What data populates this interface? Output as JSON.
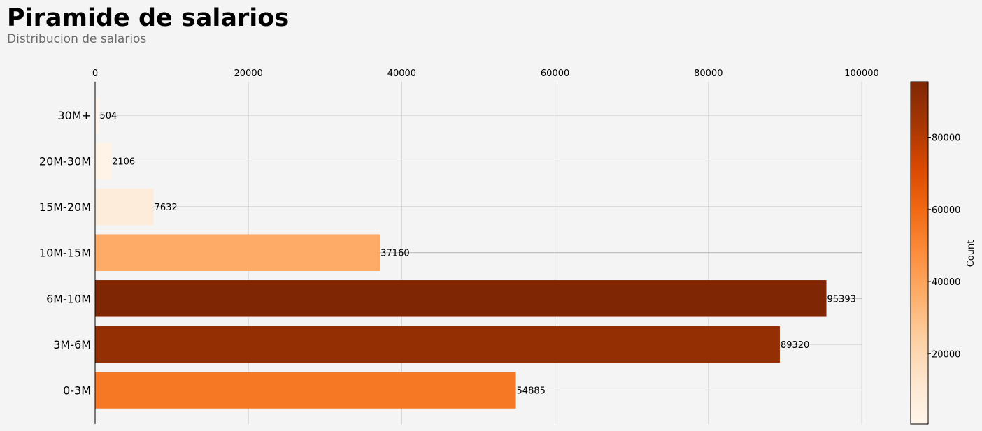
{
  "header": {
    "title": "Piramide de salarios",
    "subtitle": "Distribucion de salarios"
  },
  "chart_data": {
    "type": "bar",
    "orientation": "horizontal",
    "title": "Piramide de salarios",
    "subtitle": "Distribucion de salarios",
    "categories": [
      "0-3M",
      "3M-6M",
      "6M-10M",
      "10M-15M",
      "15M-20M",
      "20M-30M",
      "30M+"
    ],
    "values": [
      54885,
      89320,
      95393,
      37160,
      7632,
      2106,
      504
    ],
    "xlim": [
      0,
      100000
    ],
    "xticks": [
      0,
      20000,
      40000,
      60000,
      80000,
      100000
    ],
    "x_axis_position": "top",
    "grid": true,
    "colormap": "Oranges",
    "colorbar": {
      "label": "Count",
      "range": [
        504,
        95393
      ],
      "ticks": [
        20000,
        40000,
        60000,
        80000
      ]
    }
  }
}
